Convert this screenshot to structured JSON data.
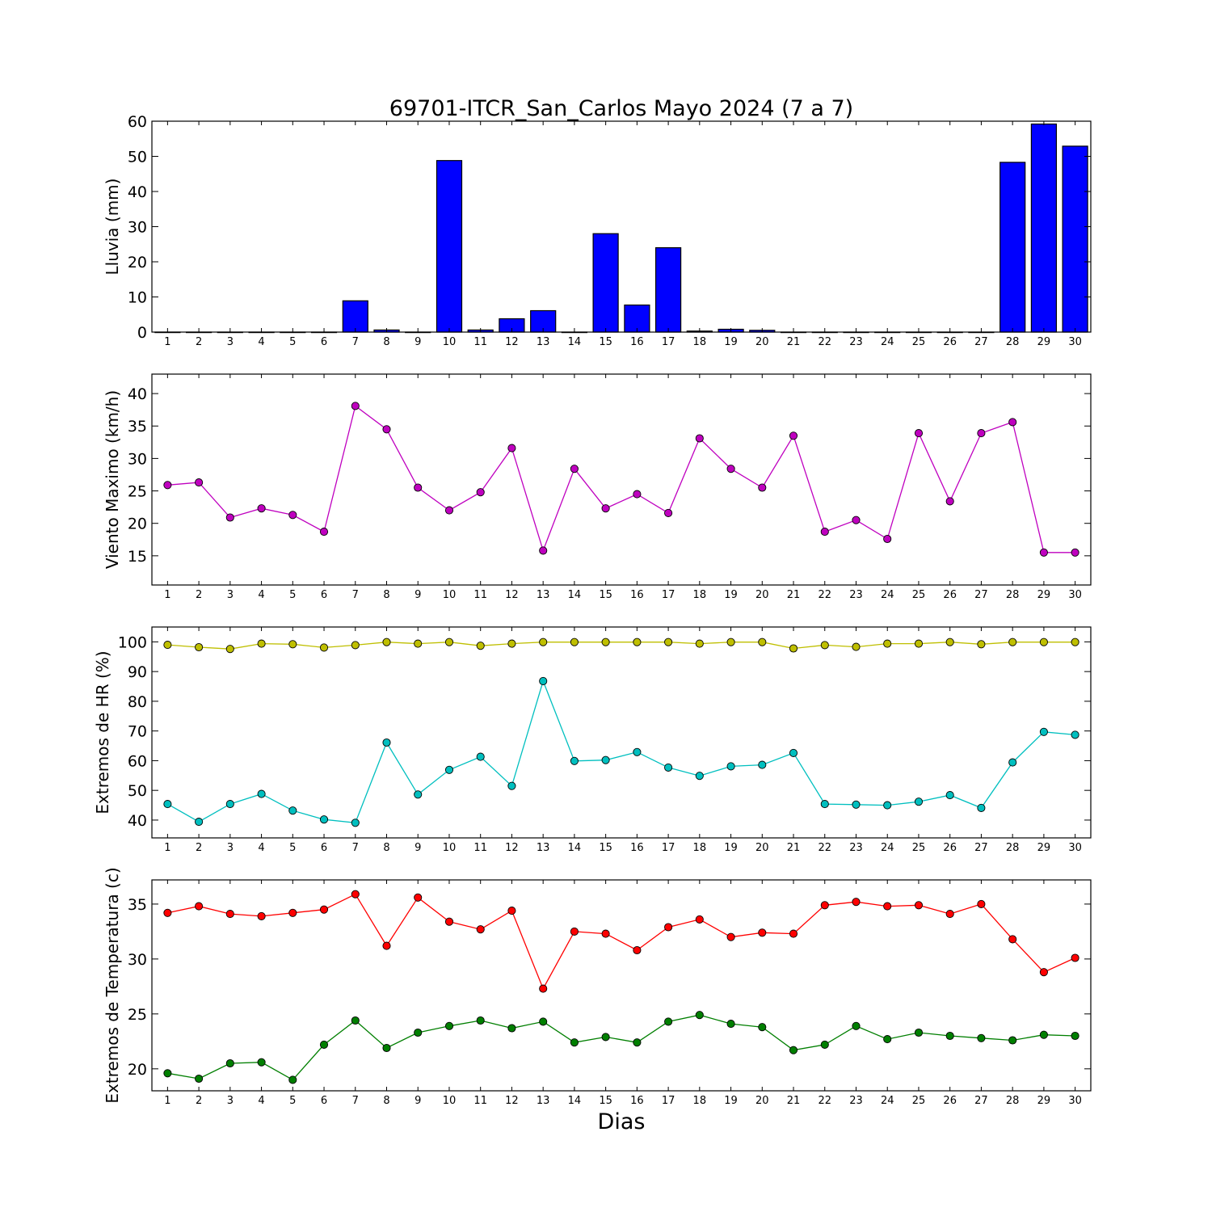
{
  "title": "69701-ITCR_San_Carlos Mayo 2024  (7 a 7)",
  "xlabel": "Dias",
  "chart_data": [
    {
      "type": "bar",
      "ylabel": "Lluvia (mm)",
      "x": [
        1,
        2,
        3,
        4,
        5,
        6,
        7,
        8,
        9,
        10,
        11,
        12,
        13,
        14,
        15,
        16,
        17,
        18,
        19,
        20,
        21,
        22,
        23,
        24,
        25,
        26,
        27,
        28,
        29,
        30
      ],
      "xlim": [
        0.5,
        30.5
      ],
      "ylim": [
        0,
        60
      ],
      "yticks": [
        0,
        10,
        20,
        30,
        40,
        50,
        60
      ],
      "grid": false,
      "series": [
        {
          "color": "#0000ff",
          "values": [
            0,
            0,
            0,
            0,
            0,
            0,
            8.9,
            0.6,
            0,
            48.8,
            0.6,
            3.8,
            6.1,
            0,
            28.0,
            7.7,
            24.0,
            0.3,
            0.8,
            0.5,
            0,
            0,
            0,
            0,
            0,
            0,
            0,
            48.3,
            59.2,
            52.9
          ]
        }
      ]
    },
    {
      "type": "line",
      "ylabel": "Viento Maximo (km/h)",
      "x": [
        1,
        2,
        3,
        4,
        5,
        6,
        7,
        8,
        9,
        10,
        11,
        12,
        13,
        14,
        15,
        16,
        17,
        18,
        19,
        20,
        21,
        22,
        23,
        24,
        25,
        26,
        27,
        28,
        29,
        30
      ],
      "xlim": [
        0.5,
        30.5
      ],
      "ylim": [
        10.5,
        43
      ],
      "yticks": [
        15,
        20,
        25,
        30,
        35,
        40
      ],
      "grid": false,
      "series": [
        {
          "color": "#bf00bf",
          "values": [
            25.9,
            26.3,
            20.9,
            22.3,
            21.3,
            18.7,
            38.1,
            34.5,
            25.5,
            22.0,
            24.8,
            31.6,
            15.8,
            28.4,
            22.3,
            24.5,
            21.6,
            33.1,
            28.4,
            25.5,
            33.5,
            18.7,
            20.5,
            17.6,
            33.9,
            23.4,
            33.9,
            35.6,
            15.5,
            15.5
          ]
        }
      ]
    },
    {
      "type": "line",
      "ylabel": "Extremos de HR (%)",
      "x": [
        1,
        2,
        3,
        4,
        5,
        6,
        7,
        8,
        9,
        10,
        11,
        12,
        13,
        14,
        15,
        16,
        17,
        18,
        19,
        20,
        21,
        22,
        23,
        24,
        25,
        26,
        27,
        28,
        29,
        30
      ],
      "xlim": [
        0.5,
        30.5
      ],
      "ylim": [
        34,
        105
      ],
      "yticks": [
        40,
        50,
        60,
        70,
        80,
        90,
        100
      ],
      "grid": false,
      "series": [
        {
          "color": "#bfbf00",
          "values": [
            99,
            98.2,
            97.6,
            99.4,
            99.2,
            98.1,
            98.9,
            99.9,
            99.4,
            99.9,
            98.7,
            99.4,
            99.9,
            99.9,
            99.9,
            99.9,
            99.9,
            99.4,
            99.9,
            99.9,
            97.8,
            98.9,
            98.3,
            99.4,
            99.4,
            99.9,
            99.2,
            99.9,
            99.9,
            99.9
          ]
        },
        {
          "color": "#00bfbf",
          "values": [
            45.4,
            39.4,
            45.4,
            48.8,
            43.2,
            40.2,
            39.1,
            66.1,
            48.6,
            56.9,
            61.3,
            51.5,
            86.8,
            59.9,
            60.2,
            62.9,
            57.7,
            54.9,
            58.1,
            58.6,
            62.6,
            45.4,
            45.2,
            45.0,
            46.2,
            48.4,
            44.1,
            59.4,
            69.7,
            68.7
          ]
        }
      ]
    },
    {
      "type": "line",
      "ylabel": "Extremos de Temperatura (c)",
      "x": [
        1,
        2,
        3,
        4,
        5,
        6,
        7,
        8,
        9,
        10,
        11,
        12,
        13,
        14,
        15,
        16,
        17,
        18,
        19,
        20,
        21,
        22,
        23,
        24,
        25,
        26,
        27,
        28,
        29,
        30
      ],
      "xlim": [
        0.5,
        30.5
      ],
      "ylim": [
        18,
        37.2
      ],
      "yticks": [
        20,
        25,
        30,
        35
      ],
      "grid": false,
      "series": [
        {
          "color": "#ff0000",
          "values": [
            34.2,
            34.8,
            34.1,
            33.9,
            34.2,
            34.5,
            35.9,
            31.2,
            35.6,
            33.4,
            32.7,
            34.4,
            27.3,
            32.5,
            32.3,
            30.8,
            32.9,
            33.6,
            32.0,
            32.4,
            32.3,
            34.9,
            35.2,
            34.8,
            34.9,
            34.1,
            35.0,
            31.8,
            28.8,
            30.1
          ]
        },
        {
          "color": "#007f00",
          "values": [
            19.6,
            19.1,
            20.5,
            20.6,
            19.0,
            22.2,
            24.4,
            21.9,
            23.3,
            23.9,
            24.4,
            23.7,
            24.3,
            22.4,
            22.9,
            22.4,
            24.3,
            24.9,
            24.1,
            23.8,
            21.7,
            22.2,
            23.9,
            22.7,
            23.3,
            23.0,
            22.8,
            22.6,
            23.1,
            23.0
          ]
        }
      ]
    }
  ]
}
